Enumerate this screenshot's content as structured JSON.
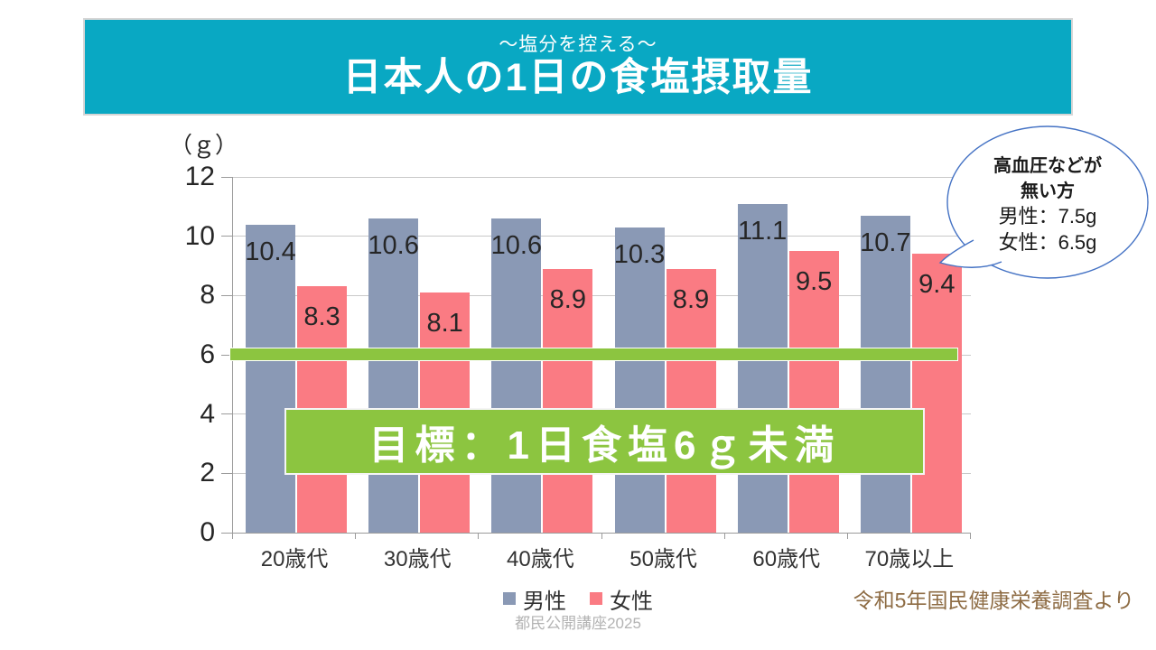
{
  "header": {
    "subtitle": "～塩分を控える～",
    "title": "日本人の1日の食塩摂取量",
    "bg_color": "#09A8C3"
  },
  "chart_data": {
    "type": "bar",
    "unit_label": "（ｇ）",
    "categories": [
      "20歳代",
      "30歳代",
      "40歳代",
      "50歳代",
      "60歳代",
      "70歳以上"
    ],
    "series": [
      {
        "name": "男性",
        "color": "#8A99B5",
        "values": [
          10.4,
          10.6,
          10.6,
          10.3,
          11.1,
          10.7
        ]
      },
      {
        "name": "女性",
        "color": "#FA7B83",
        "values": [
          8.3,
          8.1,
          8.9,
          8.9,
          9.5,
          9.4
        ]
      }
    ],
    "ylim": [
      0,
      12
    ],
    "ytick_step": 2,
    "grid": true,
    "legend_position": "bottom",
    "target_line": {
      "value": 6,
      "color": "#8CC540"
    }
  },
  "annotations": {
    "target_banner": "目標：1日食塩6ｇ未満",
    "bubble": {
      "line1": "高血圧などが",
      "line2": "無い方",
      "line3": "男性：7.5g",
      "line4": "女性：6.5g",
      "border_color": "#4472C4"
    },
    "source": "令和5年国民健康栄養調査より",
    "footer": "都民公開講座2025"
  }
}
